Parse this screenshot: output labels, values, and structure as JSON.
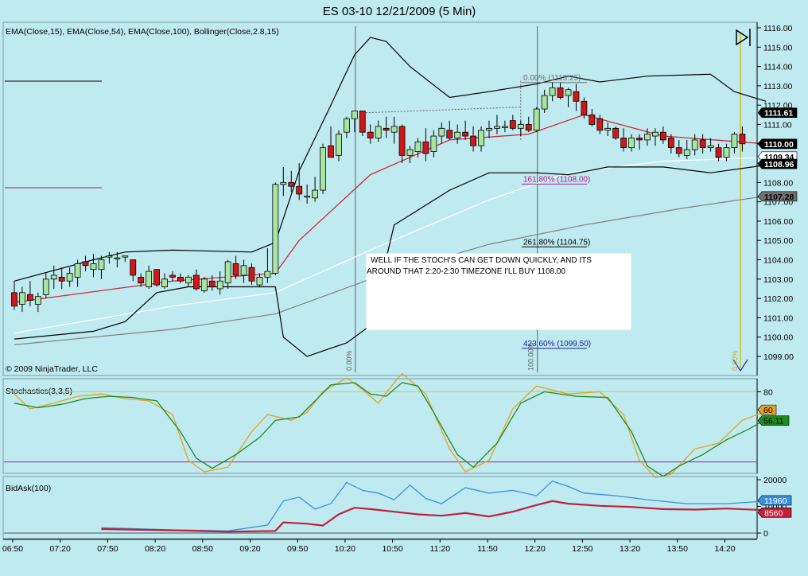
{
  "title": "ES 03-10  12/21/2009 (5 Min)",
  "panels": {
    "price": {
      "indicator_label": "EMA(Close,15), EMA(Close,54), EMA(Close,100), Bollinger(Close,2.8,15)",
      "copyright": "© 2009 NinjaTrader, LLC",
      "y_ticks": [
        "1116.00",
        "1115.00",
        "1114.00",
        "1113.00",
        "1112.00",
        "1111.00",
        "1110.00",
        "1109.00",
        "1108.00",
        "1107.00",
        "1106.00",
        "1105.00",
        "1104.00",
        "1103.00",
        "1102.00",
        "1101.00",
        "1100.00",
        "1099.00"
      ],
      "price_tags": [
        {
          "text": "1111.61",
          "value": 1111.61,
          "bg": "#000000",
          "fg": "#ffffff"
        },
        {
          "text": "1110.00",
          "value": 1110.0,
          "bg": "#000000",
          "fg": "#ffffff"
        },
        {
          "text": "1109.34",
          "value": 1109.34,
          "bg": "#ffffff",
          "fg": "#000000"
        },
        {
          "text": "1108.96",
          "value": 1108.96,
          "bg": "#000000",
          "fg": "#ffffff"
        },
        {
          "text": "1107.28",
          "value": 1107.28,
          "bg": "#707070",
          "fg": "#000000"
        }
      ],
      "fib_labels": [
        {
          "text": "0.00% (1113.25)",
          "value": 1113.25,
          "color": "#6f6f6f"
        },
        {
          "text": "161.80% (1108.00)",
          "value": 1108.0,
          "color": "#b0208a"
        },
        {
          "text": "261.80% (1104.75)",
          "value": 1104.75,
          "color": "#000000"
        },
        {
          "text": "423.60% (1099.50)",
          "value": 1099.5,
          "color": "#1a1aa0"
        }
      ],
      "vertical_labels": [
        "0.00%",
        "100.00%",
        "0.00%"
      ],
      "annotation": "WELL IF THE STOCH'S CAN GET DOWN QUICKLY, AND ITS AROUND THAT 2:20-2:30 TIMEZONE I'LL BUY 1108.00"
    },
    "stochastics": {
      "label": "Stochastics(3,3,5)",
      "y_tick": "80",
      "tags": [
        {
          "text": "60",
          "value": 60,
          "bg": "#e8a020"
        },
        {
          "text": "56.11",
          "value": 56.11,
          "bg": "#1f8a1f"
        }
      ]
    },
    "bidask": {
      "label": "BidAsk(100)",
      "y_ticks": [
        "20000",
        "10000",
        "0"
      ],
      "tags": [
        {
          "text": "11960",
          "value": 11960,
          "bg": "#3a8fe0"
        },
        {
          "text": "8560",
          "value": 8560,
          "bg": "#c0203a"
        }
      ]
    }
  },
  "time_axis": [
    "06:50",
    "07:20",
    "07:50",
    "08:20",
    "08:50",
    "09:20",
    "09:50",
    "10:20",
    "10:50",
    "11:20",
    "11:50",
    "12:20",
    "12:50",
    "13:20",
    "13:50",
    "14:20"
  ],
  "colors": {
    "background": "#bfeaf0",
    "candle_up": "#a8e6a0",
    "candle_down": "#d01818",
    "ema15": "#cc2a3a",
    "ema54": "#ffffff",
    "ema100": "#808080",
    "bollinger": "#000000",
    "stoch_k": "#e8a020",
    "stoch_d": "#1f8a1f",
    "bid": "#3a8fe0",
    "ask": "#c0203a"
  },
  "chart_data": {
    "type": "candlestick",
    "title": "ES 03-10  12/21/2009 (5 Min)",
    "ylim": [
      1098.3,
      1116.2
    ],
    "interval_minutes": 5,
    "first_bar_time": "06:50",
    "candles": [
      [
        1102.3,
        1102.9,
        1101.4,
        1101.6
      ],
      [
        1101.7,
        1102.6,
        1101.3,
        1102.3
      ],
      [
        1102.2,
        1102.9,
        1101.6,
        1101.9
      ],
      [
        1101.7,
        1102.3,
        1101.3,
        1102.1
      ],
      [
        1102.2,
        1103.3,
        1102.0,
        1103.0
      ],
      [
        1103.0,
        1103.7,
        1102.5,
        1103.2
      ],
      [
        1103.1,
        1103.6,
        1102.5,
        1102.9
      ],
      [
        1102.9,
        1103.6,
        1102.6,
        1103.3
      ],
      [
        1103.1,
        1104.0,
        1102.6,
        1103.8
      ],
      [
        1103.9,
        1104.2,
        1103.4,
        1103.7
      ],
      [
        1103.5,
        1104.3,
        1103.1,
        1103.8
      ],
      [
        1103.5,
        1104.2,
        1103.0,
        1104.0
      ],
      [
        1104.2,
        1104.4,
        1103.8,
        1104.2
      ],
      [
        1104.1,
        1104.4,
        1103.6,
        1104.1
      ],
      [
        1104.2,
        1104.2,
        1103.9,
        1104.2
      ],
      [
        1104.0,
        1104.0,
        1102.9,
        1103.2
      ],
      [
        1103.1,
        1103.3,
        1102.6,
        1102.8
      ],
      [
        1102.6,
        1103.7,
        1102.5,
        1103.4
      ],
      [
        1103.5,
        1103.5,
        1102.6,
        1102.7
      ],
      [
        1102.6,
        1103.3,
        1102.5,
        1103.0
      ],
      [
        1103.2,
        1103.4,
        1102.9,
        1103.1
      ],
      [
        1103.1,
        1103.3,
        1102.8,
        1102.9
      ],
      [
        1102.8,
        1103.2,
        1102.6,
        1103.1
      ],
      [
        1103.2,
        1103.5,
        1102.4,
        1102.5
      ],
      [
        1102.4,
        1103.1,
        1102.3,
        1103.0
      ],
      [
        1102.9,
        1103.2,
        1102.4,
        1102.6
      ],
      [
        1102.5,
        1103.4,
        1102.2,
        1102.9
      ],
      [
        1102.8,
        1104.0,
        1102.5,
        1103.9
      ],
      [
        1103.8,
        1104.2,
        1103.0,
        1103.2
      ],
      [
        1103.2,
        1104.0,
        1102.8,
        1103.7
      ],
      [
        1103.6,
        1103.8,
        1102.7,
        1102.9
      ],
      [
        1102.7,
        1103.3,
        1102.6,
        1103.1
      ],
      [
        1103.1,
        1104.6,
        1102.8,
        1103.4
      ],
      [
        1103.3,
        1108.0,
        1103.2,
        1107.9
      ],
      [
        1107.9,
        1108.8,
        1107.3,
        1108.0
      ],
      [
        1108.0,
        1108.6,
        1107.5,
        1107.8
      ],
      [
        1107.8,
        1109.0,
        1107.1,
        1107.4
      ],
      [
        1107.3,
        1107.9,
        1106.9,
        1107.3
      ],
      [
        1107.2,
        1108.3,
        1107.0,
        1107.6
      ],
      [
        1107.6,
        1110.0,
        1107.4,
        1109.8
      ],
      [
        1109.9,
        1110.9,
        1109.4,
        1109.3
      ],
      [
        1109.4,
        1110.7,
        1109.1,
        1110.5
      ],
      [
        1110.6,
        1111.4,
        1110.3,
        1111.3
      ],
      [
        1111.3,
        1111.6,
        1110.6,
        1111.7
      ],
      [
        1111.7,
        1111.7,
        1110.4,
        1110.6
      ],
      [
        1110.6,
        1111.0,
        1110.0,
        1110.3
      ],
      [
        1110.3,
        1111.2,
        1110.1,
        1110.9
      ],
      [
        1110.8,
        1111.4,
        1110.3,
        1110.7
      ],
      [
        1110.6,
        1111.4,
        1110.0,
        1110.9
      ],
      [
        1110.9,
        1111.0,
        1109.0,
        1109.4
      ],
      [
        1109.4,
        1109.9,
        1109.0,
        1109.7
      ],
      [
        1109.6,
        1110.3,
        1109.3,
        1110.1
      ],
      [
        1110.1,
        1110.8,
        1109.1,
        1109.5
      ],
      [
        1109.6,
        1110.7,
        1109.3,
        1110.4
      ],
      [
        1110.4,
        1111.1,
        1110.0,
        1110.8
      ],
      [
        1110.7,
        1111.2,
        1110.2,
        1110.3
      ],
      [
        1110.3,
        1111.0,
        1110.0,
        1110.6
      ],
      [
        1110.6,
        1111.2,
        1110.2,
        1110.4
      ],
      [
        1110.4,
        1110.9,
        1109.6,
        1109.9
      ],
      [
        1109.9,
        1110.9,
        1109.6,
        1110.7
      ],
      [
        1110.7,
        1111.2,
        1110.3,
        1110.8
      ],
      [
        1110.8,
        1111.5,
        1110.5,
        1110.9
      ],
      [
        1110.9,
        1111.2,
        1110.6,
        1110.9
      ],
      [
        1111.2,
        1111.5,
        1110.7,
        1110.8
      ],
      [
        1110.8,
        1111.2,
        1110.4,
        1111.0
      ],
      [
        1111.0,
        1111.4,
        1110.6,
        1110.7
      ],
      [
        1110.7,
        1111.9,
        1110.6,
        1111.8
      ],
      [
        1111.8,
        1112.8,
        1111.6,
        1112.5
      ],
      [
        1112.5,
        1113.2,
        1112.2,
        1112.9
      ],
      [
        1112.9,
        1113.2,
        1112.3,
        1112.4
      ],
      [
        1112.5,
        1112.9,
        1111.9,
        1112.8
      ],
      [
        1112.7,
        1113.1,
        1111.7,
        1112.2
      ],
      [
        1112.2,
        1112.4,
        1111.3,
        1111.5
      ],
      [
        1111.5,
        1111.8,
        1110.9,
        1111.0
      ],
      [
        1111.3,
        1111.5,
        1110.5,
        1110.7
      ],
      [
        1110.7,
        1111.1,
        1110.4,
        1110.8
      ],
      [
        1110.8,
        1110.9,
        1110.2,
        1110.3
      ],
      [
        1110.3,
        1110.8,
        1109.6,
        1109.8
      ],
      [
        1109.8,
        1110.5,
        1109.6,
        1110.3
      ],
      [
        1110.3,
        1110.5,
        1109.7,
        1110.2
      ],
      [
        1110.2,
        1110.8,
        1109.9,
        1110.5
      ],
      [
        1110.4,
        1110.8,
        1109.9,
        1110.6
      ],
      [
        1110.6,
        1110.9,
        1110.0,
        1110.2
      ],
      [
        1110.3,
        1110.5,
        1109.5,
        1109.8
      ],
      [
        1109.8,
        1110.2,
        1109.3,
        1109.5
      ],
      [
        1109.4,
        1110.2,
        1109.2,
        1109.7
      ],
      [
        1109.7,
        1110.5,
        1109.4,
        1110.2
      ],
      [
        1110.2,
        1110.5,
        1109.5,
        1109.8
      ],
      [
        1109.8,
        1110.3,
        1109.6,
        1109.9
      ],
      [
        1109.8,
        1110.0,
        1109.1,
        1109.3
      ],
      [
        1109.3,
        1110.0,
        1109.1,
        1109.8
      ],
      [
        1109.8,
        1110.6,
        1109.5,
        1110.5
      ],
      [
        1110.5,
        1110.9,
        1109.6,
        1110.0
      ]
    ],
    "ema15": [
      [
        0,
        1101.8
      ],
      [
        20,
        1102.9
      ],
      [
        33,
        1103.3
      ],
      [
        36,
        1105.0
      ],
      [
        45,
        1108.4
      ],
      [
        55,
        1110.2
      ],
      [
        65,
        1110.5
      ],
      [
        72,
        1111.5
      ],
      [
        82,
        1110.4
      ],
      [
        95,
        1110.0
      ]
    ],
    "ema54": [
      [
        0,
        1100.2
      ],
      [
        20,
        1101.6
      ],
      [
        33,
        1102.3
      ],
      [
        45,
        1104.5
      ],
      [
        60,
        1107.1
      ],
      [
        70,
        1108.5
      ],
      [
        82,
        1109.1
      ],
      [
        95,
        1109.3
      ]
    ],
    "ema100": [
      [
        0,
        1099.6
      ],
      [
        20,
        1100.4
      ],
      [
        33,
        1101.2
      ],
      [
        45,
        1103.0
      ],
      [
        60,
        1104.8
      ],
      [
        72,
        1105.8
      ],
      [
        85,
        1106.7
      ],
      [
        95,
        1107.3
      ]
    ],
    "bollinger_upper": [
      [
        0,
        1102.9
      ],
      [
        10,
        1104.0
      ],
      [
        14,
        1104.4
      ],
      [
        20,
        1104.5
      ],
      [
        30,
        1104.4
      ],
      [
        33,
        1104.9
      ],
      [
        36,
        1108.6
      ],
      [
        40,
        1112.0
      ],
      [
        43,
        1114.6
      ],
      [
        45,
        1115.5
      ],
      [
        47,
        1115.3
      ],
      [
        50,
        1114.0
      ],
      [
        55,
        1112.4
      ],
      [
        60,
        1112.7
      ],
      [
        66,
        1113.1
      ],
      [
        70,
        1113.5
      ],
      [
        74,
        1113.2
      ],
      [
        80,
        1113.5
      ],
      [
        88,
        1113.6
      ],
      [
        91,
        1112.7
      ],
      [
        95,
        1112.2
      ]
    ],
    "bollinger_lower": [
      [
        0,
        1099.9
      ],
      [
        10,
        1100.3
      ],
      [
        14,
        1100.8
      ],
      [
        18,
        1102.3
      ],
      [
        22,
        1102.6
      ],
      [
        33,
        1102.6
      ],
      [
        34,
        1100.0
      ],
      [
        37,
        1099.0
      ],
      [
        42,
        1099.7
      ],
      [
        45,
        1100.6
      ],
      [
        48,
        1105.8
      ],
      [
        55,
        1107.6
      ],
      [
        60,
        1108.5
      ],
      [
        66,
        1108.5
      ],
      [
        70,
        1108.4
      ],
      [
        75,
        1108.8
      ],
      [
        82,
        1108.8
      ],
      [
        88,
        1108.5
      ],
      [
        95,
        1108.9
      ]
    ],
    "stochastics_k": [
      [
        0,
        78
      ],
      [
        2,
        65
      ],
      [
        5,
        70
      ],
      [
        8,
        76
      ],
      [
        11,
        78
      ],
      [
        14,
        74
      ],
      [
        17,
        72
      ],
      [
        20,
        60
      ],
      [
        22,
        20
      ],
      [
        24,
        10
      ],
      [
        27,
        14
      ],
      [
        30,
        45
      ],
      [
        32,
        60
      ],
      [
        35,
        55
      ],
      [
        37,
        62
      ],
      [
        39,
        80
      ],
      [
        42,
        92
      ],
      [
        44,
        82
      ],
      [
        46,
        70
      ],
      [
        48,
        88
      ],
      [
        49,
        96
      ],
      [
        52,
        78
      ],
      [
        55,
        30
      ],
      [
        57,
        10
      ],
      [
        60,
        20
      ],
      [
        63,
        65
      ],
      [
        66,
        85
      ],
      [
        70,
        78
      ],
      [
        74,
        80
      ],
      [
        77,
        60
      ],
      [
        79,
        20
      ],
      [
        81,
        5
      ],
      [
        83,
        8
      ],
      [
        86,
        30
      ],
      [
        89,
        35
      ],
      [
        92,
        55
      ],
      [
        95,
        63
      ]
    ],
    "stochastics_d": [
      [
        0,
        70
      ],
      [
        3,
        66
      ],
      [
        6,
        69
      ],
      [
        9,
        74
      ],
      [
        12,
        76
      ],
      [
        15,
        75
      ],
      [
        18,
        72
      ],
      [
        21,
        45
      ],
      [
        23,
        22
      ],
      [
        25,
        13
      ],
      [
        28,
        25
      ],
      [
        31,
        40
      ],
      [
        33,
        55
      ],
      [
        36,
        58
      ],
      [
        38,
        72
      ],
      [
        40,
        86
      ],
      [
        43,
        88
      ],
      [
        45,
        78
      ],
      [
        47,
        76
      ],
      [
        49,
        88
      ],
      [
        51,
        85
      ],
      [
        53,
        62
      ],
      [
        56,
        25
      ],
      [
        58,
        14
      ],
      [
        61,
        35
      ],
      [
        64,
        70
      ],
      [
        67,
        80
      ],
      [
        71,
        76
      ],
      [
        75,
        75
      ],
      [
        78,
        45
      ],
      [
        80,
        15
      ],
      [
        82,
        6
      ],
      [
        84,
        15
      ],
      [
        87,
        25
      ],
      [
        90,
        38
      ],
      [
        93,
        48
      ],
      [
        95,
        56
      ]
    ],
    "bidask_bid": [
      [
        11,
        2000
      ],
      [
        20,
        1200
      ],
      [
        27,
        800
      ],
      [
        32,
        3000
      ],
      [
        34,
        12000
      ],
      [
        36,
        13500
      ],
      [
        38,
        9000
      ],
      [
        40,
        11000
      ],
      [
        42,
        19000
      ],
      [
        44,
        16000
      ],
      [
        46,
        15000
      ],
      [
        48,
        12500
      ],
      [
        50,
        18000
      ],
      [
        52,
        13000
      ],
      [
        54,
        11000
      ],
      [
        57,
        17000
      ],
      [
        60,
        15000
      ],
      [
        63,
        16000
      ],
      [
        66,
        14000
      ],
      [
        68,
        19500
      ],
      [
        70,
        17500
      ],
      [
        72,
        15000
      ],
      [
        76,
        14000
      ],
      [
        80,
        12500
      ],
      [
        85,
        11000
      ],
      [
        90,
        11000
      ],
      [
        95,
        11960
      ]
    ],
    "bidask_ask": [
      [
        11,
        1500
      ],
      [
        20,
        1000
      ],
      [
        27,
        500
      ],
      [
        33,
        800
      ],
      [
        34,
        4000
      ],
      [
        37,
        3500
      ],
      [
        39,
        2800
      ],
      [
        41,
        7000
      ],
      [
        43,
        9500
      ],
      [
        45,
        9000
      ],
      [
        48,
        8000
      ],
      [
        51,
        7000
      ],
      [
        54,
        6500
      ],
      [
        57,
        7500
      ],
      [
        60,
        6200
      ],
      [
        63,
        8000
      ],
      [
        66,
        10500
      ],
      [
        68,
        12000
      ],
      [
        70,
        11000
      ],
      [
        74,
        10200
      ],
      [
        78,
        9800
      ],
      [
        82,
        9000
      ],
      [
        86,
        8800
      ],
      [
        90,
        9200
      ],
      [
        95,
        8560
      ]
    ],
    "stoch_ylim": [
      10,
      90
    ],
    "bidask_ylim": [
      0,
      22000
    ]
  }
}
